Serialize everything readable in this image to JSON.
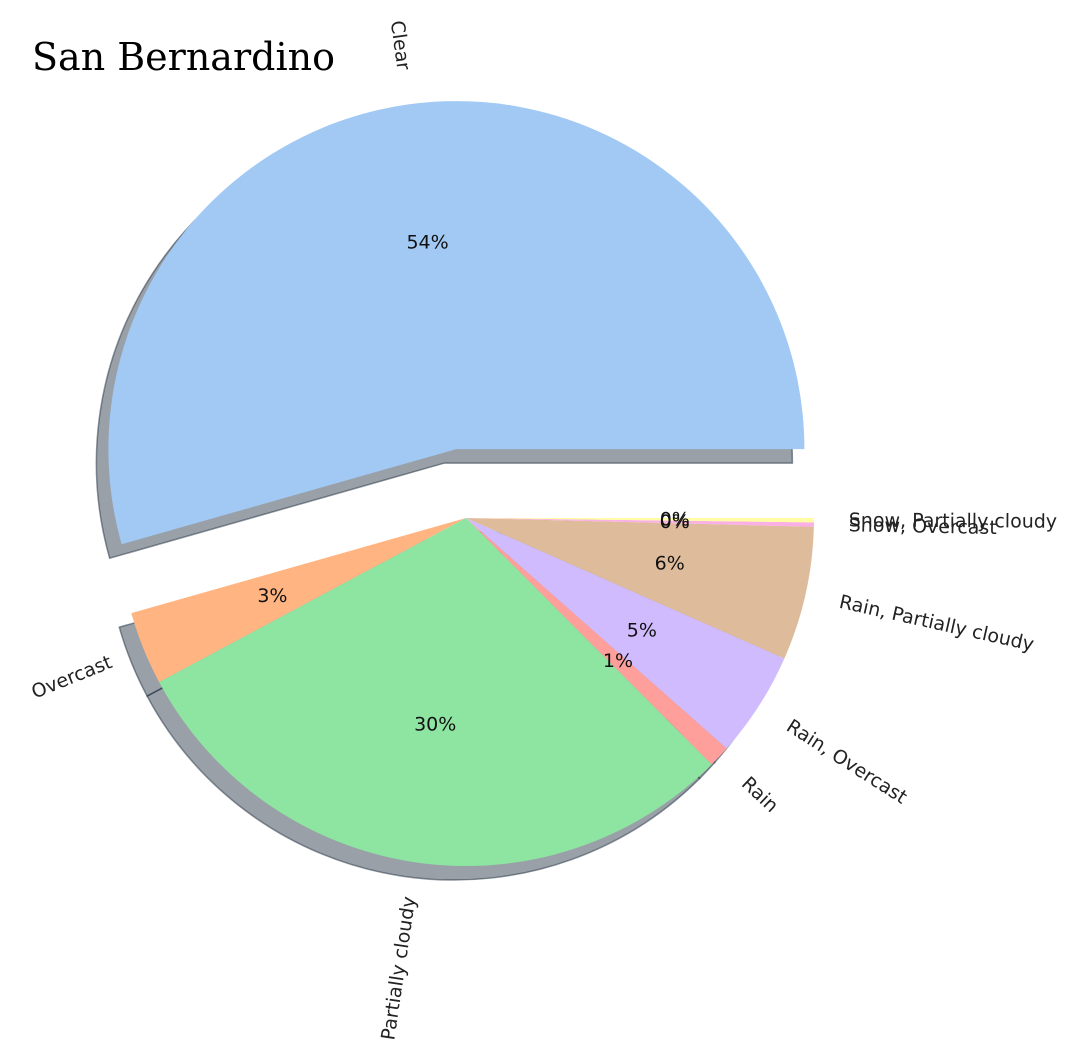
{
  "chart_data": {
    "type": "pie",
    "title": "San Bernardino",
    "slices": [
      {
        "label": "Clear",
        "value": 54.3,
        "pct_label": "54%",
        "color": "#a1c9f4",
        "explode": true
      },
      {
        "label": "Overcast",
        "value": 3.4,
        "pct_label": "3%",
        "color": "#ffb482",
        "explode": false
      },
      {
        "label": "Partially cloudy",
        "value": 29.6,
        "pct_label": "30%",
        "color": "#8de5a1",
        "explode": false
      },
      {
        "label": "Rain",
        "value": 1.0,
        "pct_label": "1%",
        "color": "#ff9f9b",
        "explode": false
      },
      {
        "label": "Rain, Overcast",
        "value": 4.9,
        "pct_label": "5%",
        "color": "#d0bbff",
        "explode": false
      },
      {
        "label": "Rain, Partially cloudy",
        "value": 6.2,
        "pct_label": "6%",
        "color": "#debb9b",
        "explode": false
      },
      {
        "label": "Snow, Overcast",
        "value": 0.2,
        "pct_label": "0%",
        "color": "#fab0e4",
        "explode": false
      },
      {
        "label": "Snow, Partially cloudy",
        "value": 0.2,
        "pct_label": "0%",
        "color": "#fffea3",
        "explode": false
      }
    ],
    "start_angle_deg": 0,
    "direction": "counterclockwise",
    "shadow": true,
    "rotate_labels": true
  }
}
